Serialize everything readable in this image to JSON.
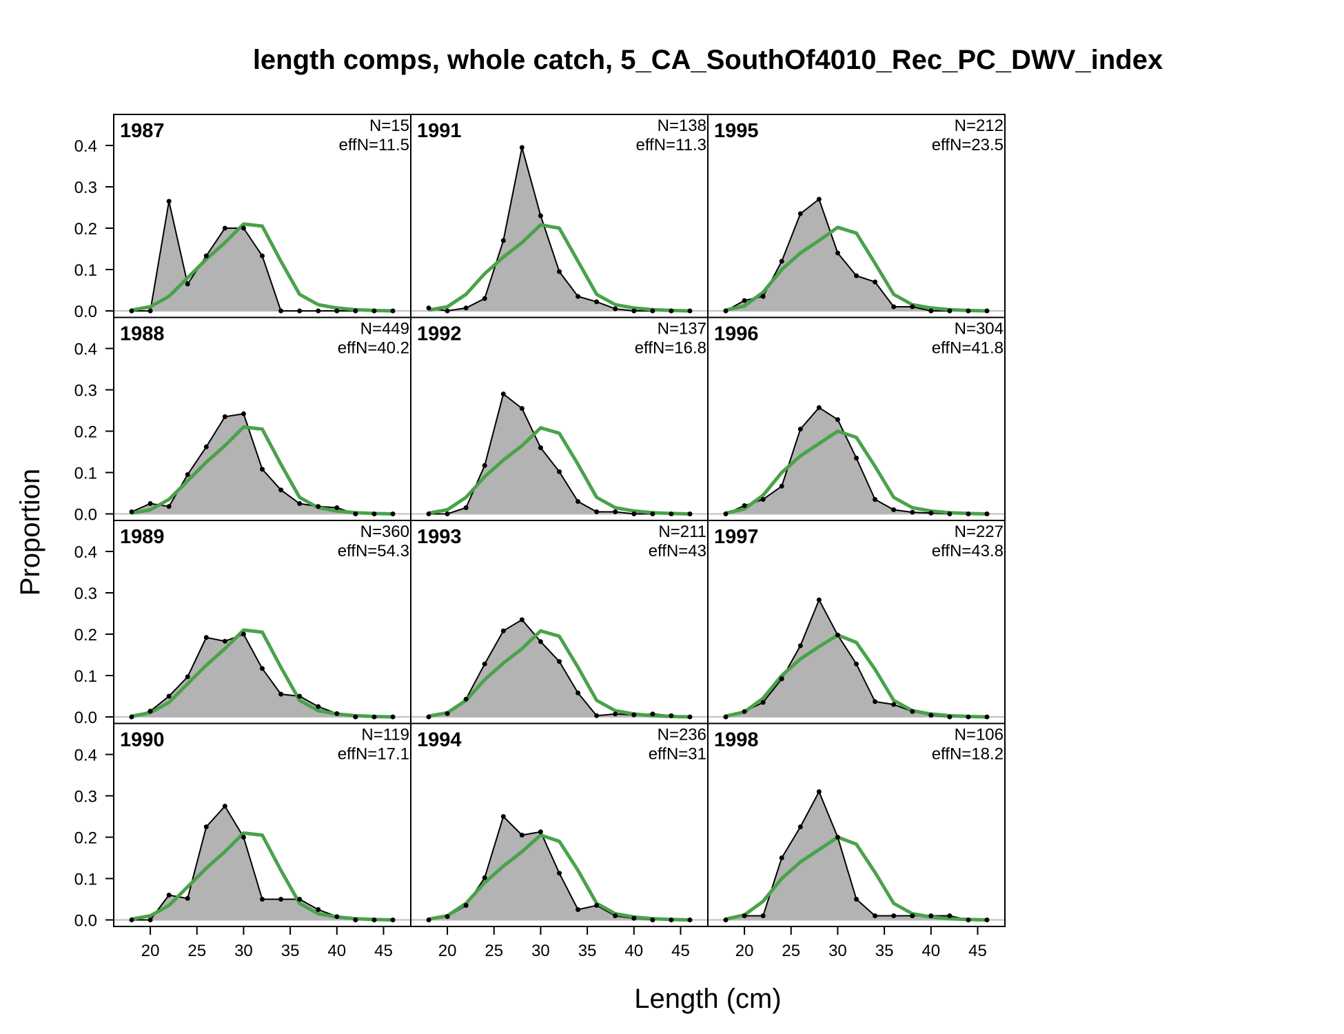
{
  "title": "length comps, whole catch, 5_CA_SouthOf4010_Rec_PC_DWV_index",
  "chart_data": {
    "type": "area",
    "title": "length comps, whole catch, 5_CA_SouthOf4010_Rec_PC_DWV_index",
    "xlabel": "Length (cm)",
    "ylabel": "Proportion",
    "xlim": [
      18,
      46
    ],
    "ylim": [
      0,
      0.45
    ],
    "x_ticks": [
      20,
      25,
      30,
      35,
      40,
      45
    ],
    "y_ticks": [
      0.0,
      0.1,
      0.2,
      0.3,
      0.4
    ],
    "y_tick_labels": [
      "0.0",
      "0.1",
      "0.2",
      "0.3",
      "0.4"
    ],
    "layout": "4 rows x 3 columns, years filled top-to-bottom then left-to-right",
    "colors": {
      "observed_fill": "#b3b3b3",
      "observed_line": "#000000",
      "expected_line": "#4aa24a",
      "zero_line": "#bfbfbf"
    },
    "x": [
      18,
      20,
      22,
      24,
      26,
      28,
      30,
      32,
      34,
      36,
      38,
      40,
      42,
      44,
      46
    ],
    "panels": [
      {
        "year": "1987",
        "n": "N=15",
        "effn": "effN=11.5",
        "observed": [
          0.0,
          0.0,
          0.265,
          0.065,
          0.133,
          0.2,
          0.2,
          0.133,
          0.0,
          0.0,
          0.0,
          0.0,
          0.0,
          0.0,
          0.0
        ],
        "expected": [
          0.002,
          0.01,
          0.035,
          0.08,
          0.125,
          0.165,
          0.21,
          0.205,
          0.12,
          0.04,
          0.015,
          0.007,
          0.003,
          0.001,
          0.0
        ]
      },
      {
        "year": "1988",
        "n": "N=449",
        "effn": "effN=40.2",
        "observed": [
          0.005,
          0.025,
          0.018,
          0.095,
          0.162,
          0.235,
          0.242,
          0.108,
          0.058,
          0.025,
          0.018,
          0.015,
          0.0,
          0.0,
          0.0
        ],
        "expected": [
          0.002,
          0.01,
          0.035,
          0.08,
          0.125,
          0.165,
          0.21,
          0.205,
          0.12,
          0.04,
          0.015,
          0.007,
          0.003,
          0.001,
          0.0
        ]
      },
      {
        "year": "1989",
        "n": "N=360",
        "effn": "effN=54.3",
        "observed": [
          0.0,
          0.014,
          0.05,
          0.097,
          0.192,
          0.183,
          0.2,
          0.117,
          0.055,
          0.05,
          0.025,
          0.008,
          0.0,
          0.0,
          0.0
        ],
        "expected": [
          0.002,
          0.01,
          0.035,
          0.08,
          0.125,
          0.165,
          0.21,
          0.205,
          0.12,
          0.04,
          0.015,
          0.007,
          0.003,
          0.001,
          0.0
        ]
      },
      {
        "year": "1990",
        "n": "N=119",
        "effn": "effN=17.1",
        "observed": [
          0.0,
          0.0,
          0.06,
          0.052,
          0.225,
          0.275,
          0.2,
          0.05,
          0.05,
          0.05,
          0.025,
          0.008,
          0.0,
          0.0,
          0.0
        ],
        "expected": [
          0.002,
          0.01,
          0.035,
          0.08,
          0.125,
          0.165,
          0.21,
          0.205,
          0.12,
          0.04,
          0.015,
          0.007,
          0.003,
          0.001,
          0.0
        ]
      },
      {
        "year": "1991",
        "n": "N=138",
        "effn": "effN=11.3",
        "observed": [
          0.007,
          0.0,
          0.007,
          0.03,
          0.17,
          0.395,
          0.23,
          0.095,
          0.035,
          0.022,
          0.005,
          0.0,
          0.0,
          0.0,
          0.0
        ],
        "expected": [
          0.002,
          0.01,
          0.04,
          0.09,
          0.13,
          0.165,
          0.208,
          0.2,
          0.12,
          0.04,
          0.015,
          0.007,
          0.003,
          0.001,
          0.0
        ]
      },
      {
        "year": "1992",
        "n": "N=137",
        "effn": "effN=16.8",
        "observed": [
          0.0,
          0.0,
          0.015,
          0.117,
          0.29,
          0.255,
          0.16,
          0.102,
          0.03,
          0.005,
          0.005,
          0.0,
          0.0,
          0.0,
          0.0
        ],
        "expected": [
          0.002,
          0.01,
          0.04,
          0.09,
          0.13,
          0.165,
          0.208,
          0.195,
          0.12,
          0.04,
          0.015,
          0.007,
          0.003,
          0.001,
          0.0
        ]
      },
      {
        "year": "1993",
        "n": "N=211",
        "effn": "effN=43",
        "observed": [
          0.0,
          0.008,
          0.043,
          0.128,
          0.208,
          0.235,
          0.182,
          0.134,
          0.058,
          0.003,
          0.007,
          0.005,
          0.007,
          0.003,
          0.0
        ],
        "expected": [
          0.002,
          0.01,
          0.04,
          0.09,
          0.13,
          0.165,
          0.208,
          0.195,
          0.12,
          0.04,
          0.015,
          0.007,
          0.003,
          0.001,
          0.0
        ]
      },
      {
        "year": "1994",
        "n": "N=236",
        "effn": "effN=31",
        "observed": [
          0.0,
          0.008,
          0.035,
          0.102,
          0.25,
          0.205,
          0.213,
          0.113,
          0.025,
          0.035,
          0.01,
          0.004,
          0.0,
          0.0,
          0.0
        ],
        "expected": [
          0.002,
          0.01,
          0.04,
          0.09,
          0.13,
          0.165,
          0.205,
          0.19,
          0.12,
          0.04,
          0.015,
          0.007,
          0.003,
          0.001,
          0.0
        ]
      },
      {
        "year": "1995",
        "n": "N=212",
        "effn": "effN=23.5",
        "observed": [
          0.0,
          0.025,
          0.035,
          0.12,
          0.235,
          0.27,
          0.14,
          0.085,
          0.07,
          0.01,
          0.01,
          0.0,
          0.0,
          0.0,
          0.0
        ],
        "expected": [
          0.002,
          0.012,
          0.045,
          0.1,
          0.14,
          0.17,
          0.202,
          0.188,
          0.115,
          0.04,
          0.015,
          0.007,
          0.003,
          0.001,
          0.0
        ]
      },
      {
        "year": "1996",
        "n": "N=304",
        "effn": "effN=41.8",
        "observed": [
          0.0,
          0.02,
          0.035,
          0.067,
          0.205,
          0.257,
          0.228,
          0.135,
          0.035,
          0.01,
          0.004,
          0.002,
          0.0,
          0.0,
          0.0
        ],
        "expected": [
          0.002,
          0.012,
          0.045,
          0.1,
          0.14,
          0.17,
          0.2,
          0.185,
          0.115,
          0.04,
          0.015,
          0.007,
          0.003,
          0.001,
          0.0
        ]
      },
      {
        "year": "1997",
        "n": "N=227",
        "effn": "effN=43.8",
        "observed": [
          0.0,
          0.013,
          0.035,
          0.092,
          0.172,
          0.283,
          0.198,
          0.128,
          0.037,
          0.03,
          0.013,
          0.004,
          0.0,
          0.0,
          0.0
        ],
        "expected": [
          0.002,
          0.012,
          0.045,
          0.1,
          0.14,
          0.17,
          0.198,
          0.18,
          0.115,
          0.04,
          0.015,
          0.007,
          0.003,
          0.001,
          0.0
        ]
      },
      {
        "year": "1998",
        "n": "N=106",
        "effn": "effN=18.2",
        "observed": [
          0.0,
          0.01,
          0.01,
          0.15,
          0.225,
          0.31,
          0.2,
          0.05,
          0.01,
          0.01,
          0.01,
          0.01,
          0.01,
          0.0,
          0.0
        ],
        "expected": [
          0.002,
          0.012,
          0.045,
          0.1,
          0.14,
          0.17,
          0.2,
          0.183,
          0.115,
          0.04,
          0.015,
          0.007,
          0.003,
          0.001,
          0.0
        ]
      }
    ]
  }
}
